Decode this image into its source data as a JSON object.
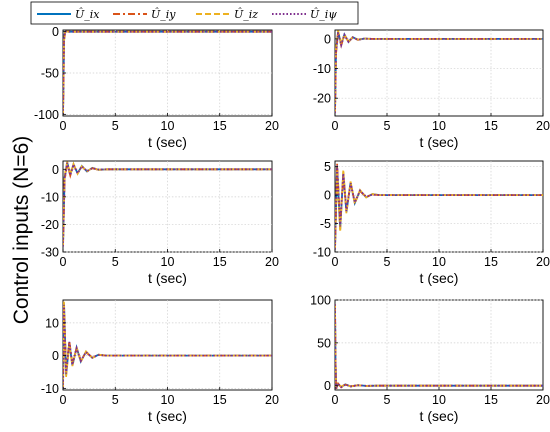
{
  "figure": {
    "ylabel": "Control inputs (N=6)",
    "legend": [
      {
        "label": "Û_ix",
        "color": "#0072BD",
        "dash": "solid"
      },
      {
        "label": "Û_iy",
        "color": "#D95319",
        "dash": "dashdot"
      },
      {
        "label": "Û_iz",
        "color": "#EDB120",
        "dash": "dashed"
      },
      {
        "label": "Û_iψ",
        "color": "#7E2F8E",
        "dash": "dotted"
      }
    ],
    "legend_position": "top-left"
  },
  "chart_data": [
    {
      "type": "line",
      "xlabel": "t (sec)",
      "xlim": [
        0,
        20
      ],
      "ylim": [
        -102,
        2
      ],
      "xticks": [
        0,
        5,
        10,
        15,
        20
      ],
      "yticks": [
        -100,
        -50,
        0
      ],
      "grid": true,
      "series": [
        {
          "x": [
            0,
            0.05,
            0.1,
            0.2,
            0.3,
            0.5,
            1,
            2,
            4,
            20
          ],
          "values": [
            -100,
            -60,
            -10,
            0,
            0.3,
            0,
            0,
            0,
            0,
            0
          ]
        },
        {
          "x": [
            0,
            0.05,
            0.1,
            0.2,
            0.3,
            0.5,
            1,
            2,
            4,
            20
          ],
          "values": [
            -100,
            -65,
            -12,
            -1,
            0.5,
            0,
            0,
            0,
            0,
            0
          ]
        },
        {
          "x": [
            0,
            0.05,
            0.1,
            0.2,
            0.3,
            0.5,
            1,
            2,
            4,
            20
          ],
          "values": [
            -100,
            -62,
            -11,
            -0.5,
            0.3,
            0,
            0,
            0,
            0,
            0
          ]
        },
        {
          "x": [
            0,
            0.05,
            0.1,
            0.2,
            0.3,
            0.5,
            1,
            2,
            4,
            20
          ],
          "values": [
            -100,
            -58,
            -9,
            0,
            0.2,
            0,
            0,
            0,
            0,
            0
          ]
        }
      ]
    },
    {
      "type": "line",
      "xlabel": "t (sec)",
      "xlim": [
        0,
        20
      ],
      "ylim": [
        -26,
        3
      ],
      "xticks": [
        0,
        5,
        10,
        15,
        20
      ],
      "yticks": [
        -20,
        -10,
        0
      ],
      "grid": true,
      "series": [
        {
          "x": [
            0,
            0.1,
            0.3,
            0.6,
            0.9,
            1.3,
            1.7,
            2.2,
            2.8,
            3.5,
            4.5,
            20
          ],
          "values": [
            -25,
            -4,
            2.5,
            -2,
            1.5,
            -1,
            0.6,
            -0.3,
            0.1,
            0,
            0,
            0
          ]
        },
        {
          "x": [
            0,
            0.1,
            0.3,
            0.6,
            0.9,
            1.3,
            1.7,
            2.2,
            2.8,
            3.5,
            4.5,
            20
          ],
          "values": [
            -25,
            -5,
            2,
            -2.2,
            1.3,
            -0.9,
            0.5,
            -0.3,
            0.1,
            0,
            0,
            0
          ]
        },
        {
          "x": [
            0,
            0.1,
            0.3,
            0.6,
            0.9,
            1.3,
            1.7,
            2.2,
            2.8,
            3.5,
            4.5,
            20
          ],
          "values": [
            -25,
            -3,
            2.8,
            -1.8,
            1.6,
            -1.1,
            0.6,
            -0.2,
            0.1,
            0,
            0,
            0
          ]
        },
        {
          "x": [
            0,
            0.1,
            0.3,
            0.6,
            0.9,
            1.3,
            1.7,
            2.2,
            2.8,
            3.5,
            4.5,
            20
          ],
          "values": [
            -25,
            -4.5,
            2.2,
            -2.1,
            1.4,
            -1,
            0.5,
            -0.3,
            0.1,
            0,
            0,
            0
          ]
        }
      ]
    },
    {
      "type": "line",
      "xlabel": "t (sec)",
      "xlim": [
        0,
        20
      ],
      "ylim": [
        -30,
        3
      ],
      "xticks": [
        0,
        5,
        10,
        15,
        20
      ],
      "yticks": [
        -30,
        -20,
        -10,
        0
      ],
      "grid": true,
      "series": [
        {
          "x": [
            0,
            0.15,
            0.4,
            0.7,
            1.0,
            1.4,
            1.8,
            2.3,
            2.8,
            3.4,
            4.2,
            20
          ],
          "values": [
            -28,
            -3,
            2.5,
            -2,
            1.8,
            -1.5,
            1.2,
            -0.8,
            0.5,
            -0.2,
            0,
            0
          ]
        },
        {
          "x": [
            0,
            0.15,
            0.4,
            0.7,
            1.0,
            1.4,
            1.8,
            2.3,
            2.8,
            3.4,
            4.2,
            20
          ],
          "values": [
            -28,
            -4,
            2,
            -2.3,
            1.6,
            -1.4,
            1,
            -0.7,
            0.4,
            -0.2,
            0,
            0
          ]
        },
        {
          "x": [
            0,
            0.15,
            0.4,
            0.7,
            1.0,
            1.4,
            1.8,
            2.3,
            2.8,
            3.4,
            4.2,
            20
          ],
          "values": [
            -28,
            -2.5,
            2.7,
            -1.8,
            1.9,
            -1.6,
            1.1,
            -0.8,
            0.5,
            -0.2,
            0,
            0
          ]
        },
        {
          "x": [
            0,
            0.15,
            0.4,
            0.7,
            1.0,
            1.4,
            1.8,
            2.3,
            2.8,
            3.4,
            4.2,
            20
          ],
          "values": [
            -28,
            -3.5,
            2.3,
            -2.1,
            1.7,
            -1.5,
            1.1,
            -0.7,
            0.4,
            -0.1,
            0,
            0
          ]
        }
      ]
    },
    {
      "type": "line",
      "xlabel": "t (sec)",
      "xlim": [
        0,
        20
      ],
      "ylim": [
        -10,
        6
      ],
      "xticks": [
        0,
        5,
        10,
        15,
        20
      ],
      "yticks": [
        -10,
        -5,
        0,
        5
      ],
      "grid": true,
      "series": [
        {
          "x": [
            0,
            0.2,
            0.5,
            0.8,
            1.1,
            1.5,
            1.9,
            2.4,
            3.0,
            3.6,
            4.3,
            20
          ],
          "values": [
            -9.5,
            5,
            -6,
            4,
            -3,
            2.2,
            -1.4,
            0.8,
            -0.4,
            0.2,
            0,
            0
          ]
        },
        {
          "x": [
            0,
            0.2,
            0.5,
            0.8,
            1.1,
            1.5,
            1.9,
            2.4,
            3.0,
            3.6,
            4.3,
            20
          ],
          "values": [
            -9.5,
            5.5,
            -5,
            3.5,
            -2.5,
            2,
            -1.2,
            0.7,
            -0.3,
            0.1,
            0,
            0
          ]
        },
        {
          "x": [
            0,
            0.2,
            0.5,
            0.8,
            1.1,
            1.5,
            1.9,
            2.4,
            3.0,
            3.6,
            4.3,
            20
          ],
          "values": [
            -9.5,
            4.5,
            -6.5,
            4.5,
            -3.2,
            2.4,
            -1.5,
            0.9,
            -0.4,
            0.2,
            0,
            0
          ]
        },
        {
          "x": [
            0,
            0.2,
            0.5,
            0.8,
            1.1,
            1.5,
            1.9,
            2.4,
            3.0,
            3.6,
            4.3,
            20
          ],
          "values": [
            -9.5,
            5.2,
            -5.5,
            3.8,
            -2.8,
            2.1,
            -1.3,
            0.8,
            -0.3,
            0.1,
            0,
            0
          ]
        }
      ]
    },
    {
      "type": "line",
      "xlabel": "t (sec)",
      "xlim": [
        0,
        20
      ],
      "ylim": [
        -10.5,
        17
      ],
      "xticks": [
        0,
        5,
        10,
        15,
        20
      ],
      "yticks": [
        -10,
        0,
        10
      ],
      "grid": true,
      "series": [
        {
          "x": [
            0,
            0.1,
            0.3,
            0.6,
            0.9,
            1.3,
            1.7,
            2.2,
            2.8,
            3.4,
            4.2,
            20
          ],
          "values": [
            -10,
            16,
            -6,
            4,
            -3,
            2.5,
            -1.8,
            1.2,
            -0.7,
            0.3,
            0,
            0
          ]
        },
        {
          "x": [
            0,
            0.1,
            0.3,
            0.6,
            0.9,
            1.3,
            1.7,
            2.2,
            2.8,
            3.4,
            4.2,
            20
          ],
          "values": [
            -10,
            15,
            -5,
            4.5,
            -2.5,
            2.2,
            -1.5,
            1,
            -0.5,
            0.2,
            0,
            0
          ]
        },
        {
          "x": [
            0,
            0.1,
            0.3,
            0.6,
            0.9,
            1.3,
            1.7,
            2.2,
            2.8,
            3.4,
            4.2,
            20
          ],
          "values": [
            -10,
            16.5,
            -6.5,
            3.5,
            -3.2,
            2.6,
            -1.9,
            1.3,
            -0.7,
            0.3,
            0,
            0
          ]
        },
        {
          "x": [
            0,
            0.1,
            0.3,
            0.6,
            0.9,
            1.3,
            1.7,
            2.2,
            2.8,
            3.4,
            4.2,
            20
          ],
          "values": [
            -10,
            15.5,
            -5.5,
            4.2,
            -2.8,
            2.3,
            -1.6,
            1.1,
            -0.6,
            0.2,
            0,
            0
          ]
        }
      ]
    },
    {
      "type": "line",
      "xlabel": "t (sec)",
      "xlim": [
        0,
        20
      ],
      "ylim": [
        -5,
        100
      ],
      "xticks": [
        0,
        5,
        10,
        15,
        20
      ],
      "yticks": [
        0,
        50,
        100
      ],
      "grid": true,
      "series": [
        {
          "x": [
            0,
            0.05,
            0.12,
            0.3,
            0.6,
            1,
            1.5,
            2.2,
            3,
            4,
            20
          ],
          "values": [
            95,
            30,
            -3,
            2,
            -1.5,
            1.5,
            -0.8,
            0.6,
            -0.2,
            0,
            0
          ]
        },
        {
          "x": [
            0,
            0.05,
            0.12,
            0.3,
            0.6,
            1,
            1.5,
            2.2,
            3,
            4,
            20
          ],
          "values": [
            95,
            28,
            -4,
            2.5,
            -1.8,
            1.2,
            -0.7,
            0.5,
            -0.2,
            0,
            0
          ]
        },
        {
          "x": [
            0,
            0.05,
            0.12,
            0.3,
            0.6,
            1,
            1.5,
            2.2,
            3,
            4,
            20
          ],
          "values": [
            95,
            32,
            -2.5,
            1.8,
            -1.2,
            1.6,
            -0.9,
            0.6,
            -0.3,
            0,
            0
          ]
        },
        {
          "x": [
            0,
            0.05,
            0.12,
            0.3,
            0.6,
            1,
            1.5,
            2.2,
            3,
            4,
            20
          ],
          "values": [
            95,
            29,
            -3.5,
            2.2,
            -1.6,
            1.4,
            -0.8,
            0.5,
            -0.2,
            0,
            0
          ]
        }
      ]
    }
  ]
}
